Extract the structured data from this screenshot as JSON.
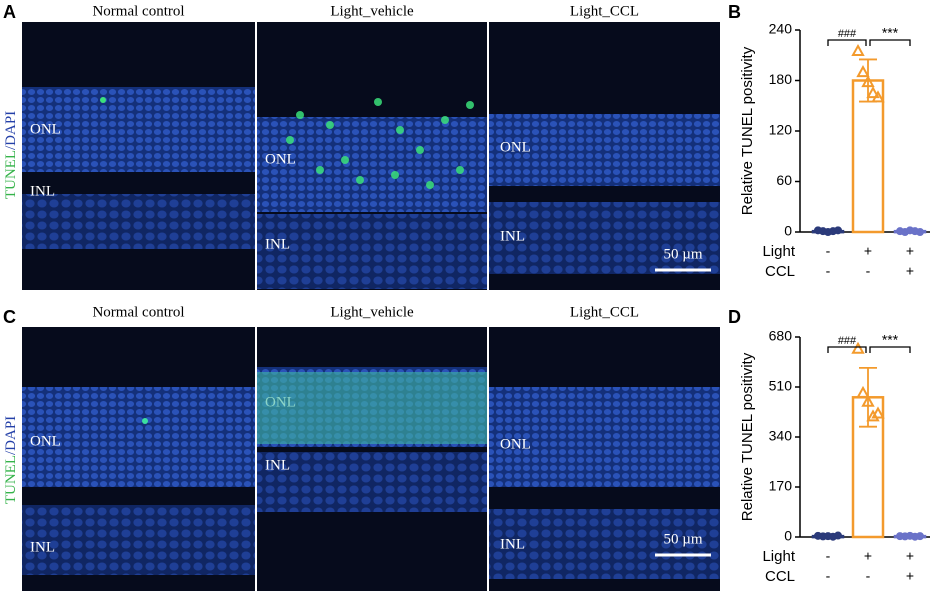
{
  "figure": {
    "panel_labels": [
      "A",
      "B",
      "C",
      "D"
    ],
    "image_panels": [
      {
        "columns": [
          "Normal control",
          "Light_vehicle",
          "Light_CCL"
        ],
        "stain": "TUNEL",
        "counterstain": "/DAPI",
        "images": [
          {
            "labels": [
              "ONL",
              "INL"
            ]
          },
          {
            "labels": [
              "ONL",
              "INL"
            ]
          },
          {
            "labels": [
              "ONL",
              "INL"
            ]
          }
        ],
        "scale_bar": "50 µm"
      },
      {
        "columns": [
          "Normal control",
          "Light_vehicle",
          "Light_CCL"
        ],
        "stain": "TUNEL",
        "counterstain": "/DAPI",
        "images": [
          {
            "labels": [
              "ONL",
              "INL"
            ]
          },
          {
            "labels": [
              "ONL",
              "INL"
            ]
          },
          {
            "labels": [
              "ONL",
              "INL"
            ]
          }
        ],
        "scale_bar": "50 µm"
      }
    ]
  },
  "chart_data": [
    {
      "type": "bar",
      "ylabel": "Relative TUNEL positivity",
      "ylim": [
        0,
        240
      ],
      "yticks": [
        0,
        60,
        120,
        180,
        240
      ],
      "values": [
        1,
        180,
        1
      ],
      "errors": [
        1,
        25,
        1
      ],
      "points": [
        [
          2,
          1,
          0,
          1,
          2
        ],
        [
          215,
          190,
          178,
          165,
          160
        ],
        [
          1,
          0,
          2,
          1,
          0
        ]
      ],
      "colors": [
        "#2b3a7a",
        "#f39a2c",
        "#6a72c8"
      ],
      "factors": [
        {
          "name": "Light",
          "levels": [
            "-",
            "+",
            "+"
          ]
        },
        {
          "name": "CCL",
          "levels": [
            "-",
            "-",
            "+"
          ]
        }
      ],
      "annotations": [
        "###",
        "***"
      ]
    },
    {
      "type": "bar",
      "ylabel": "Relative TUNEL positivity",
      "ylim": [
        0,
        680
      ],
      "yticks": [
        0,
        170,
        340,
        510,
        680
      ],
      "values": [
        3,
        475,
        3
      ],
      "errors": [
        2,
        100,
        2
      ],
      "points": [
        [
          4,
          2,
          3,
          1,
          5
        ],
        [
          640,
          490,
          460,
          410,
          420
        ],
        [
          3,
          2,
          4,
          1,
          3
        ]
      ],
      "colors": [
        "#2b3a7a",
        "#f39a2c",
        "#6a72c8"
      ],
      "factors": [
        {
          "name": "Light",
          "levels": [
            "-",
            "+",
            "+"
          ]
        },
        {
          "name": "CCL",
          "levels": [
            "-",
            "-",
            "+"
          ]
        }
      ],
      "annotations": [
        "###",
        "***"
      ]
    }
  ]
}
